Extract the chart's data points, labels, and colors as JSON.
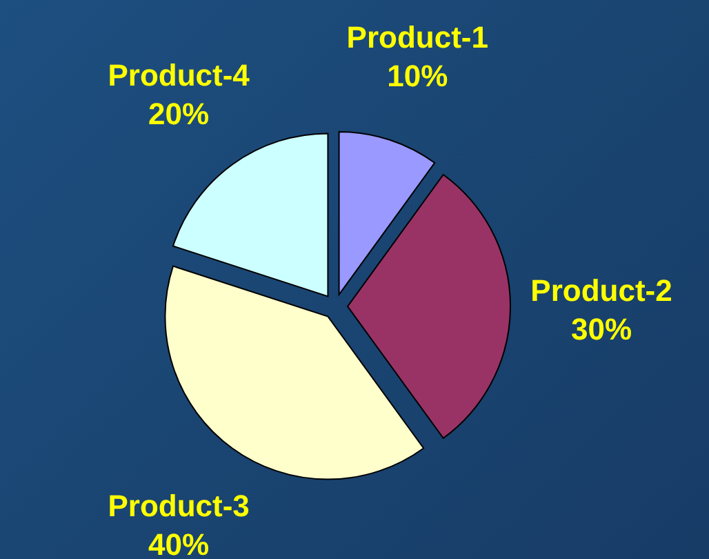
{
  "chart_data": {
    "type": "pie",
    "categories": [
      "Product-1",
      "Product-2",
      "Product-3",
      "Product-4"
    ],
    "values": [
      10,
      30,
      40,
      20
    ],
    "colors": [
      "#9999ff",
      "#993366",
      "#ffffcc",
      "#ccffff"
    ],
    "value_labels": [
      "10%",
      "30%",
      "40%",
      "20%"
    ]
  }
}
